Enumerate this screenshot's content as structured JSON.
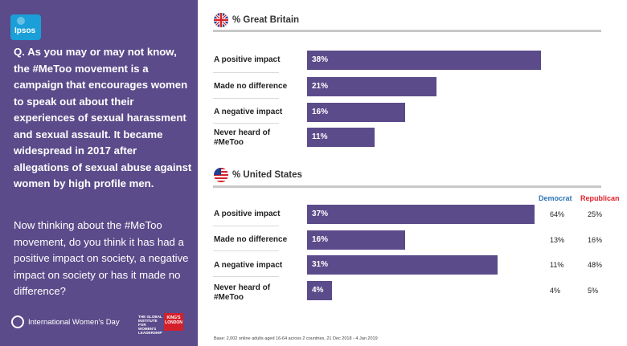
{
  "left": {
    "logo_text": "Ipsos",
    "question": "Q. As you may or may not know, the #MeToo movement is a campaign that encourages women to speak out about their experiences of sexual harassment and sexual assault.  It became widespread in 2017 after allegations of sexual abuse against women by high profile men.",
    "prompt": "Now thinking about the #MeToo movement, do you think it has had a positive impact on society, a negative impact on society or has it made no difference?",
    "iwd_label": "International Women's Day",
    "giwl_label": "THE GLOBAL INSTITUTE FOR WOMEN'S LEADERSHIP",
    "kings_label": "KING'S LONDON"
  },
  "gb_title": "% Great Britain",
  "us_title": "% United States",
  "col_heads": {
    "democrat": "Democrat",
    "republican": "Republican"
  },
  "colors": {
    "bar": "#5b4b8a",
    "democrat": "#2e75b6",
    "republican": "#e0202b"
  },
  "base_note": "Base: 2,002 online adults aged 16-64 across 2 countries,  21 Dec 2018 - 4 Jan 2019",
  "chart_data": [
    {
      "type": "bar",
      "orientation": "horizontal",
      "title": "% Great Britain",
      "categories": [
        "A positive impact",
        "Made no difference",
        "A negative impact",
        "Never heard of #MeToo"
      ],
      "values": [
        38,
        21,
        16,
        11
      ],
      "labels": [
        "38%",
        "21%",
        "16%",
        "11%"
      ]
    },
    {
      "type": "bar",
      "orientation": "horizontal",
      "title": "% United States",
      "categories": [
        "A positive impact",
        "Made no difference",
        "A negative impact",
        "Never heard of #MeToo"
      ],
      "values": [
        37,
        16,
        31,
        4
      ],
      "labels": [
        "37%",
        "16%",
        "31%",
        "4%"
      ],
      "democrat": [
        "64%",
        "13%",
        "11%",
        "4%"
      ],
      "republican": [
        "25%",
        "16%",
        "48%",
        "5%"
      ]
    }
  ]
}
